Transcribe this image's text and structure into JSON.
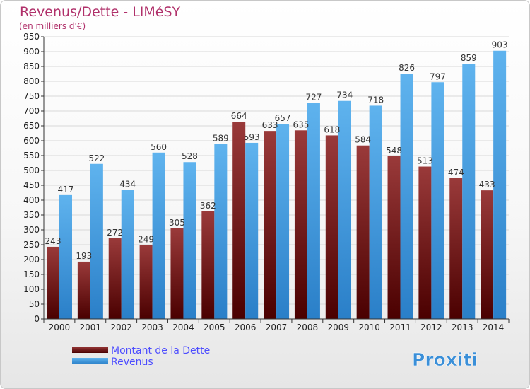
{
  "chart_data": {
    "type": "bar",
    "title": "Revenus/Dette - LIMéSY",
    "subtitle": "(en milliers d'€)",
    "xlabel": "",
    "ylabel": "",
    "ylim": [
      0,
      950
    ],
    "ytick_step": 50,
    "grid": true,
    "legend_position": "bottom-left",
    "categories": [
      "2000",
      "2001",
      "2002",
      "2003",
      "2004",
      "2005",
      "2006",
      "2007",
      "2008",
      "2009",
      "2010",
      "2011",
      "2012",
      "2013",
      "2014"
    ],
    "series": [
      {
        "name": "Montant de la Dette",
        "color": "#7a1a1a",
        "values": [
          243,
          193,
          272,
          249,
          305,
          362,
          664,
          633,
          635,
          618,
          584,
          548,
          513,
          474,
          433
        ]
      },
      {
        "name": "Revenus",
        "color": "#4fa3e3",
        "values": [
          417,
          522,
          434,
          560,
          528,
          589,
          593,
          657,
          727,
          734,
          718,
          826,
          797,
          859,
          903
        ]
      }
    ]
  },
  "branding": {
    "logo_text": "Proxiti"
  },
  "colors": {
    "title": "#b0306a",
    "axis": "#333333",
    "grid": "#d8d8d8"
  }
}
